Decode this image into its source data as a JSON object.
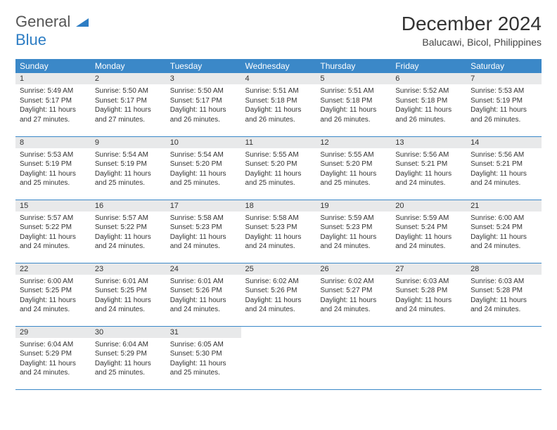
{
  "logo": {
    "part1": "General",
    "part2": "Blue"
  },
  "title": "December 2024",
  "location": "Balucawi, Bicol, Philippines",
  "colors": {
    "header_bg": "#3b88c8",
    "header_text": "#ffffff",
    "daynum_bg": "#e8e9ea",
    "border": "#3b88c8",
    "logo_accent": "#2d7dc4",
    "logo_gray": "#555555"
  },
  "weekdays": [
    "Sunday",
    "Monday",
    "Tuesday",
    "Wednesday",
    "Thursday",
    "Friday",
    "Saturday"
  ],
  "weeks": [
    [
      {
        "n": "1",
        "sr": "Sunrise: 5:49 AM",
        "ss": "Sunset: 5:17 PM",
        "d1": "Daylight: 11 hours",
        "d2": "and 27 minutes."
      },
      {
        "n": "2",
        "sr": "Sunrise: 5:50 AM",
        "ss": "Sunset: 5:17 PM",
        "d1": "Daylight: 11 hours",
        "d2": "and 27 minutes."
      },
      {
        "n": "3",
        "sr": "Sunrise: 5:50 AM",
        "ss": "Sunset: 5:17 PM",
        "d1": "Daylight: 11 hours",
        "d2": "and 26 minutes."
      },
      {
        "n": "4",
        "sr": "Sunrise: 5:51 AM",
        "ss": "Sunset: 5:18 PM",
        "d1": "Daylight: 11 hours",
        "d2": "and 26 minutes."
      },
      {
        "n": "5",
        "sr": "Sunrise: 5:51 AM",
        "ss": "Sunset: 5:18 PM",
        "d1": "Daylight: 11 hours",
        "d2": "and 26 minutes."
      },
      {
        "n": "6",
        "sr": "Sunrise: 5:52 AM",
        "ss": "Sunset: 5:18 PM",
        "d1": "Daylight: 11 hours",
        "d2": "and 26 minutes."
      },
      {
        "n": "7",
        "sr": "Sunrise: 5:53 AM",
        "ss": "Sunset: 5:19 PM",
        "d1": "Daylight: 11 hours",
        "d2": "and 26 minutes."
      }
    ],
    [
      {
        "n": "8",
        "sr": "Sunrise: 5:53 AM",
        "ss": "Sunset: 5:19 PM",
        "d1": "Daylight: 11 hours",
        "d2": "and 25 minutes."
      },
      {
        "n": "9",
        "sr": "Sunrise: 5:54 AM",
        "ss": "Sunset: 5:19 PM",
        "d1": "Daylight: 11 hours",
        "d2": "and 25 minutes."
      },
      {
        "n": "10",
        "sr": "Sunrise: 5:54 AM",
        "ss": "Sunset: 5:20 PM",
        "d1": "Daylight: 11 hours",
        "d2": "and 25 minutes."
      },
      {
        "n": "11",
        "sr": "Sunrise: 5:55 AM",
        "ss": "Sunset: 5:20 PM",
        "d1": "Daylight: 11 hours",
        "d2": "and 25 minutes."
      },
      {
        "n": "12",
        "sr": "Sunrise: 5:55 AM",
        "ss": "Sunset: 5:20 PM",
        "d1": "Daylight: 11 hours",
        "d2": "and 25 minutes."
      },
      {
        "n": "13",
        "sr": "Sunrise: 5:56 AM",
        "ss": "Sunset: 5:21 PM",
        "d1": "Daylight: 11 hours",
        "d2": "and 24 minutes."
      },
      {
        "n": "14",
        "sr": "Sunrise: 5:56 AM",
        "ss": "Sunset: 5:21 PM",
        "d1": "Daylight: 11 hours",
        "d2": "and 24 minutes."
      }
    ],
    [
      {
        "n": "15",
        "sr": "Sunrise: 5:57 AM",
        "ss": "Sunset: 5:22 PM",
        "d1": "Daylight: 11 hours",
        "d2": "and 24 minutes."
      },
      {
        "n": "16",
        "sr": "Sunrise: 5:57 AM",
        "ss": "Sunset: 5:22 PM",
        "d1": "Daylight: 11 hours",
        "d2": "and 24 minutes."
      },
      {
        "n": "17",
        "sr": "Sunrise: 5:58 AM",
        "ss": "Sunset: 5:23 PM",
        "d1": "Daylight: 11 hours",
        "d2": "and 24 minutes."
      },
      {
        "n": "18",
        "sr": "Sunrise: 5:58 AM",
        "ss": "Sunset: 5:23 PM",
        "d1": "Daylight: 11 hours",
        "d2": "and 24 minutes."
      },
      {
        "n": "19",
        "sr": "Sunrise: 5:59 AM",
        "ss": "Sunset: 5:23 PM",
        "d1": "Daylight: 11 hours",
        "d2": "and 24 minutes."
      },
      {
        "n": "20",
        "sr": "Sunrise: 5:59 AM",
        "ss": "Sunset: 5:24 PM",
        "d1": "Daylight: 11 hours",
        "d2": "and 24 minutes."
      },
      {
        "n": "21",
        "sr": "Sunrise: 6:00 AM",
        "ss": "Sunset: 5:24 PM",
        "d1": "Daylight: 11 hours",
        "d2": "and 24 minutes."
      }
    ],
    [
      {
        "n": "22",
        "sr": "Sunrise: 6:00 AM",
        "ss": "Sunset: 5:25 PM",
        "d1": "Daylight: 11 hours",
        "d2": "and 24 minutes."
      },
      {
        "n": "23",
        "sr": "Sunrise: 6:01 AM",
        "ss": "Sunset: 5:25 PM",
        "d1": "Daylight: 11 hours",
        "d2": "and 24 minutes."
      },
      {
        "n": "24",
        "sr": "Sunrise: 6:01 AM",
        "ss": "Sunset: 5:26 PM",
        "d1": "Daylight: 11 hours",
        "d2": "and 24 minutes."
      },
      {
        "n": "25",
        "sr": "Sunrise: 6:02 AM",
        "ss": "Sunset: 5:26 PM",
        "d1": "Daylight: 11 hours",
        "d2": "and 24 minutes."
      },
      {
        "n": "26",
        "sr": "Sunrise: 6:02 AM",
        "ss": "Sunset: 5:27 PM",
        "d1": "Daylight: 11 hours",
        "d2": "and 24 minutes."
      },
      {
        "n": "27",
        "sr": "Sunrise: 6:03 AM",
        "ss": "Sunset: 5:28 PM",
        "d1": "Daylight: 11 hours",
        "d2": "and 24 minutes."
      },
      {
        "n": "28",
        "sr": "Sunrise: 6:03 AM",
        "ss": "Sunset: 5:28 PM",
        "d1": "Daylight: 11 hours",
        "d2": "and 24 minutes."
      }
    ],
    [
      {
        "n": "29",
        "sr": "Sunrise: 6:04 AM",
        "ss": "Sunset: 5:29 PM",
        "d1": "Daylight: 11 hours",
        "d2": "and 24 minutes."
      },
      {
        "n": "30",
        "sr": "Sunrise: 6:04 AM",
        "ss": "Sunset: 5:29 PM",
        "d1": "Daylight: 11 hours",
        "d2": "and 25 minutes."
      },
      {
        "n": "31",
        "sr": "Sunrise: 6:05 AM",
        "ss": "Sunset: 5:30 PM",
        "d1": "Daylight: 11 hours",
        "d2": "and 25 minutes."
      },
      null,
      null,
      null,
      null
    ]
  ]
}
